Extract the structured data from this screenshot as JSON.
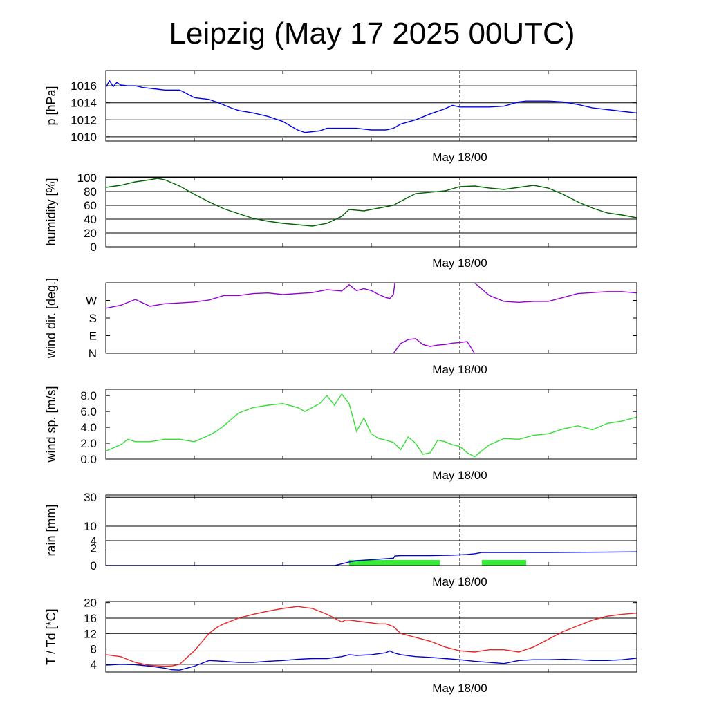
{
  "title": "Leipzig (May 17 2025 00UTC)",
  "x_axis": {
    "tick_label": "May 18/00",
    "range_hours": [
      0,
      72
    ],
    "tick_hours": [
      24,
      48
    ],
    "marker_hour": 48
  },
  "colors": {
    "pressure": "#0000ee",
    "humidity": "#006400",
    "wind_dir": "#9400d3",
    "wind_speed": "#33dd33",
    "rain_total": "#0000cc",
    "rain_bars": "#33ee33",
    "temperature": "#ee2222",
    "dewpoint": "#0000cc"
  },
  "chart_data": [
    {
      "type": "line",
      "ylabel": "p [hPa]",
      "ylim": [
        1009.5,
        1017.8
      ],
      "yticks": [
        1010,
        1012,
        1014,
        1016
      ],
      "ytick_labels": [
        "1010",
        "1012",
        "1014",
        "1016"
      ],
      "grid": [
        1010,
        1012,
        1014,
        1016
      ],
      "series": [
        {
          "color_key": "pressure",
          "x": [
            0,
            0.5,
            1,
            1.5,
            2,
            3,
            4,
            5,
            6,
            7,
            8,
            9,
            10,
            10.5,
            12,
            14,
            15,
            17,
            18,
            20,
            22,
            24,
            26,
            27,
            28,
            29,
            30,
            32,
            34,
            36,
            38,
            39,
            40,
            42,
            44,
            46,
            47,
            48,
            50,
            52,
            54,
            56,
            57,
            58,
            60,
            62,
            64,
            66,
            68,
            70,
            72
          ],
          "y": [
            1015.8,
            1016.6,
            1015.9,
            1016.4,
            1016.1,
            1016.0,
            1016.0,
            1015.8,
            1015.7,
            1015.6,
            1015.5,
            1015.5,
            1015.5,
            1015.3,
            1014.6,
            1014.4,
            1014.1,
            1013.4,
            1013.1,
            1012.8,
            1012.4,
            1011.8,
            1010.8,
            1010.5,
            1010.6,
            1010.7,
            1011.0,
            1011.0,
            1011.0,
            1010.8,
            1010.8,
            1011.0,
            1011.5,
            1012.0,
            1012.7,
            1013.3,
            1013.7,
            1013.5,
            1013.5,
            1013.5,
            1013.6,
            1014.1,
            1014.2,
            1014.2,
            1014.2,
            1014.1,
            1013.8,
            1013.4,
            1013.2,
            1013.0,
            1012.8
          ]
        }
      ]
    },
    {
      "type": "line",
      "ylabel": "humidity [%]",
      "ylim": [
        0,
        101
      ],
      "yticks": [
        0,
        20,
        40,
        60,
        80,
        100
      ],
      "ytick_labels": [
        "0",
        "20",
        "40",
        "60",
        "80",
        "100"
      ],
      "grid": [
        20,
        40,
        60,
        80,
        100
      ],
      "series": [
        {
          "color_key": "humidity",
          "x": [
            0,
            2,
            4,
            6,
            7,
            8,
            10,
            12,
            14,
            16,
            18,
            20,
            22,
            24,
            26,
            28,
            30,
            32,
            33,
            35,
            37,
            39,
            40,
            42,
            44,
            46,
            48,
            50,
            52,
            54,
            56,
            58,
            60,
            62,
            64,
            66,
            68,
            70,
            72
          ],
          "y": [
            86,
            89,
            94,
            97,
            99,
            97,
            88,
            76,
            65,
            55,
            48,
            41,
            37,
            34,
            32,
            30,
            34,
            44,
            54,
            52,
            56,
            60,
            66,
            77,
            79,
            81,
            87,
            88,
            85,
            83,
            86,
            89,
            85,
            76,
            65,
            56,
            49,
            46,
            42
          ]
        }
      ]
    },
    {
      "type": "line",
      "ylabel": "wind dir. [deg.]",
      "ylim": [
        0,
        360
      ],
      "yticks": [
        0,
        90,
        180,
        270
      ],
      "ytick_labels": [
        "N",
        "E",
        "S",
        "W"
      ],
      "grid": [],
      "series": [
        {
          "color_key": "wind_dir",
          "x": [
            0,
            2,
            4,
            6,
            8,
            10,
            12,
            14,
            16,
            18,
            20,
            22,
            24,
            26,
            28,
            30,
            32,
            33,
            34,
            35,
            36,
            37,
            38,
            38.5,
            39,
            39.2
          ],
          "y": [
            230,
            245,
            275,
            240,
            253,
            257,
            262,
            272,
            295,
            295,
            305,
            308,
            300,
            305,
            310,
            325,
            318,
            350,
            320,
            330,
            320,
            300,
            285,
            280,
            300,
            360
          ]
        },
        {
          "color_key": "wind_dir",
          "x": [
            39,
            40,
            41,
            42,
            43,
            44,
            45,
            46,
            47,
            48,
            49,
            50
          ],
          "y": [
            0,
            50,
            70,
            75,
            45,
            35,
            42,
            45,
            52,
            55,
            60,
            0
          ]
        },
        {
          "color_key": "wind_dir",
          "x": [
            50,
            52,
            54,
            56,
            58,
            60,
            62,
            64,
            66,
            68,
            70,
            72
          ],
          "y": [
            360,
            295,
            265,
            260,
            265,
            265,
            285,
            305,
            310,
            315,
            315,
            308
          ]
        }
      ]
    },
    {
      "type": "line",
      "ylabel": "wind sp. [m/s]",
      "ylim": [
        0,
        8.8
      ],
      "yticks": [
        0,
        2,
        4,
        6,
        8
      ],
      "ytick_labels": [
        "0.0",
        "2.0",
        "4.0",
        "6.0",
        "8.0"
      ],
      "grid": [],
      "series": [
        {
          "color_key": "wind_speed",
          "x": [
            0,
            2,
            3,
            4,
            6,
            8,
            10,
            12,
            14,
            15,
            16,
            18,
            20,
            22,
            24,
            26,
            27,
            28,
            29,
            30,
            31,
            32,
            33,
            34,
            35,
            36,
            37,
            38,
            39,
            40,
            41,
            42,
            43,
            44,
            45,
            46,
            47,
            48,
            49,
            50,
            52,
            54,
            56,
            58,
            60,
            62,
            64,
            66,
            68,
            70,
            72
          ],
          "y": [
            1.0,
            1.8,
            2.5,
            2.2,
            2.2,
            2.5,
            2.5,
            2.2,
            3.0,
            3.5,
            4.2,
            5.8,
            6.5,
            6.8,
            7.0,
            6.5,
            6.0,
            6.5,
            7.0,
            8.0,
            6.8,
            8.2,
            7.0,
            3.5,
            5.2,
            3.2,
            2.6,
            2.4,
            2.1,
            1.2,
            2.8,
            2.0,
            0.6,
            0.8,
            2.4,
            2.2,
            1.8,
            1.6,
            0.8,
            0.3,
            1.8,
            2.6,
            2.5,
            3.0,
            3.2,
            3.8,
            4.2,
            3.7,
            4.5,
            4.8,
            5.3
          ]
        }
      ]
    },
    {
      "type": "line",
      "ylabel": "rain [mm]",
      "scale": "sqrt",
      "ylim": [
        0,
        32
      ],
      "yticks": [
        0,
        2,
        4,
        10,
        30
      ],
      "ytick_labels": [
        "0",
        "2",
        "4",
        "10",
        "30"
      ],
      "grid": [
        2,
        4,
        10,
        30
      ],
      "series": [
        {
          "color_key": "rain_total",
          "x": [
            0,
            31,
            33,
            34,
            38,
            39,
            39.2,
            40,
            44,
            47,
            48,
            49,
            50,
            51,
            60,
            72
          ],
          "y": [
            0,
            0,
            0.08,
            0.15,
            0.3,
            0.35,
            0.6,
            0.65,
            0.65,
            0.7,
            0.75,
            0.8,
            0.9,
            1.1,
            1.1,
            1.2
          ]
        }
      ],
      "bars": [
        {
          "x0": 33,
          "x1": 45.3,
          "value": 0.2
        },
        {
          "x0": 51,
          "x1": 57,
          "value": 0.2
        }
      ]
    },
    {
      "type": "line",
      "ylabel": "T / Td [*C]",
      "ylim": [
        2,
        20.3
      ],
      "yticks": [
        4,
        8,
        12,
        16,
        20
      ],
      "ytick_labels": [
        "4",
        "8",
        "12",
        "16",
        "20"
      ],
      "grid": [
        4,
        8,
        12,
        16
      ],
      "series": [
        {
          "name": "T",
          "color_key": "temperature",
          "x": [
            0,
            2,
            4,
            6,
            8,
            9,
            10,
            12,
            14,
            15,
            16,
            18,
            20,
            22,
            24,
            26,
            28,
            30,
            32,
            32.5,
            33,
            35,
            37,
            38,
            39,
            40,
            42,
            44,
            46,
            48,
            50,
            52,
            54,
            56,
            58,
            60,
            62,
            64,
            66,
            68,
            70,
            72
          ],
          "y": [
            6.5,
            6.0,
            4.5,
            3.7,
            3.5,
            3.6,
            4.0,
            7.5,
            12.0,
            13.5,
            14.5,
            16.0,
            17.0,
            17.8,
            18.5,
            19.0,
            18.5,
            17.0,
            15.0,
            15.5,
            15.5,
            15.0,
            14.5,
            14.5,
            13.8,
            12.0,
            11.0,
            10.0,
            8.5,
            7.5,
            7.2,
            7.8,
            7.8,
            7.2,
            8.5,
            10.5,
            12.5,
            14.0,
            15.5,
            16.5,
            17.0,
            17.3
          ]
        },
        {
          "name": "Td",
          "color_key": "dewpoint",
          "x": [
            0,
            2,
            4,
            6,
            8,
            9,
            10,
            12,
            14,
            16,
            18,
            20,
            22,
            24,
            26,
            28,
            30,
            32,
            33,
            34,
            36,
            38,
            38.5,
            39,
            40,
            42,
            44,
            46,
            48,
            50,
            52,
            54,
            56,
            58,
            60,
            62,
            64,
            66,
            68,
            70,
            72
          ],
          "y": [
            3.8,
            4.0,
            3.9,
            3.5,
            3.0,
            2.6,
            2.5,
            3.5,
            5.0,
            4.8,
            4.5,
            4.5,
            4.8,
            5.0,
            5.3,
            5.5,
            5.5,
            6.0,
            6.5,
            6.3,
            6.5,
            7.0,
            7.5,
            7.0,
            6.5,
            6.0,
            5.8,
            5.5,
            5.2,
            4.8,
            4.5,
            4.2,
            5.0,
            5.2,
            5.2,
            5.3,
            5.2,
            5.0,
            5.0,
            5.2,
            5.6
          ]
        }
      ]
    }
  ]
}
